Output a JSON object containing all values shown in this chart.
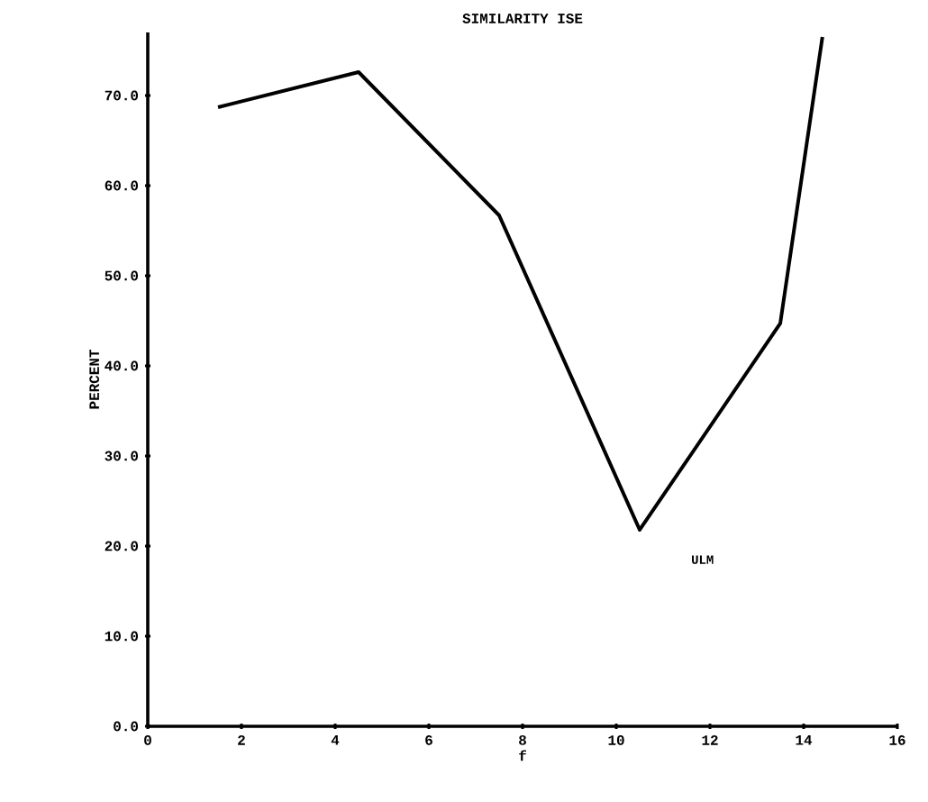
{
  "chart_data": {
    "type": "line",
    "title": "SIMILARITY ISE",
    "ylabel": "PERCENT",
    "xlabel": "f",
    "x": [
      1.5,
      4.5,
      7.5,
      10.5,
      13.5,
      14.4
    ],
    "values": [
      68.7,
      72.6,
      56.7,
      21.8,
      44.7,
      76.5
    ],
    "color": "#000000",
    "xlim": [
      0,
      16
    ],
    "xticks": [
      0,
      2,
      4,
      6,
      8,
      10,
      12,
      14,
      16
    ],
    "ylim": [
      0,
      77
    ],
    "yticks": [
      {
        "value": 0,
        "label": "0.0"
      },
      {
        "value": 10,
        "label": "10.0"
      },
      {
        "value": 20,
        "label": "20.0"
      },
      {
        "value": 30,
        "label": "30.0"
      },
      {
        "value": 40,
        "label": "40.0"
      },
      {
        "value": 50,
        "label": "50.0"
      },
      {
        "value": 60,
        "label": "60.0"
      },
      {
        "value": 70,
        "label": "70.0"
      }
    ],
    "annotations": [
      "ULM"
    ],
    "grid": false,
    "marker": "none",
    "line_style": "solid"
  }
}
